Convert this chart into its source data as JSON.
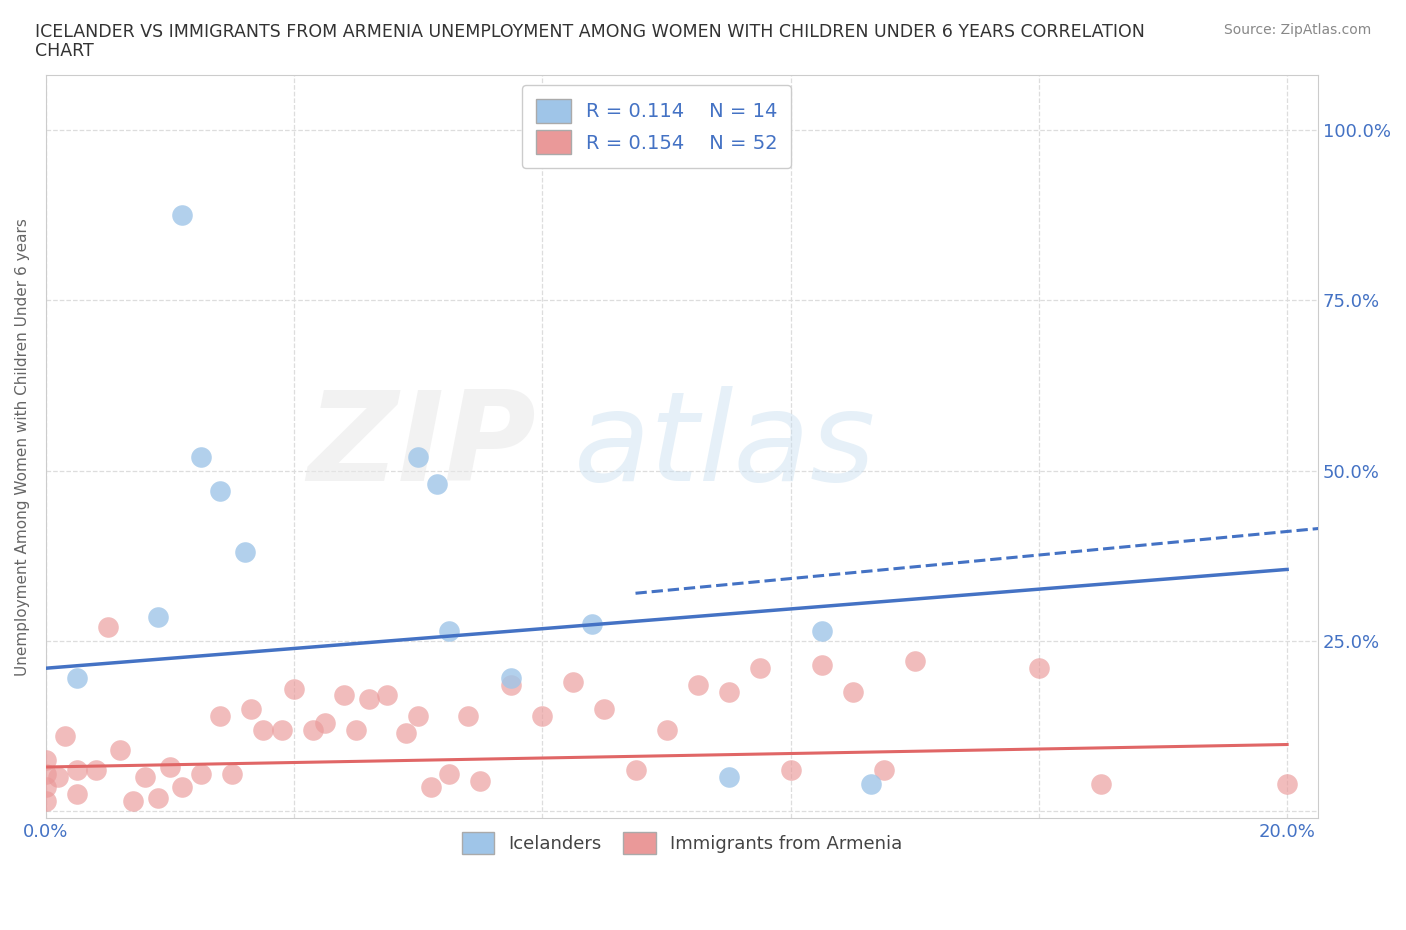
{
  "title_line1": "ICELANDER VS IMMIGRANTS FROM ARMENIA UNEMPLOYMENT AMONG WOMEN WITH CHILDREN UNDER 6 YEARS CORRELATION",
  "title_line2": "CHART",
  "source": "Source: ZipAtlas.com",
  "ylabel": "Unemployment Among Women with Children Under 6 years",
  "xlim": [
    0.0,
    0.205
  ],
  "ylim": [
    -0.01,
    1.08
  ],
  "xtick_positions": [
    0.0,
    0.04,
    0.08,
    0.12,
    0.16,
    0.2
  ],
  "ytick_positions": [
    0.0,
    0.25,
    0.5,
    0.75,
    1.0
  ],
  "xtick_labels": [
    "0.0%",
    "",
    "",
    "",
    "",
    "20.0%"
  ],
  "ytick_labels_left": [
    "",
    "",
    "",
    "",
    ""
  ],
  "ytick_labels_right": [
    "",
    "25.0%",
    "50.0%",
    "75.0%",
    "100.0%"
  ],
  "blue_scatter_color": "#9fc5e8",
  "pink_scatter_color": "#ea9999",
  "blue_line_color": "#4472c4",
  "pink_line_color": "#e06666",
  "tick_color": "#4472c4",
  "grid_color": "#dddddd",
  "legend1_label": "Icelanders",
  "legend2_label": "Immigrants from Armenia",
  "icelander_x": [
    0.005,
    0.018,
    0.022,
    0.025,
    0.028,
    0.032,
    0.06,
    0.063,
    0.065,
    0.075,
    0.088,
    0.11,
    0.125,
    0.133
  ],
  "icelander_y": [
    0.195,
    0.285,
    0.875,
    0.52,
    0.47,
    0.38,
    0.52,
    0.48,
    0.265,
    0.195,
    0.275,
    0.05,
    0.265,
    0.04
  ],
  "armenia_x": [
    0.0,
    0.0,
    0.0,
    0.0,
    0.002,
    0.003,
    0.005,
    0.005,
    0.008,
    0.01,
    0.012,
    0.014,
    0.016,
    0.018,
    0.02,
    0.022,
    0.025,
    0.028,
    0.03,
    0.033,
    0.035,
    0.038,
    0.04,
    0.043,
    0.045,
    0.048,
    0.05,
    0.052,
    0.055,
    0.058,
    0.06,
    0.062,
    0.065,
    0.068,
    0.07,
    0.075,
    0.08,
    0.085,
    0.09,
    0.095,
    0.1,
    0.105,
    0.11,
    0.115,
    0.12,
    0.125,
    0.13,
    0.135,
    0.14,
    0.16,
    0.17,
    0.2
  ],
  "armenia_y": [
    0.055,
    0.035,
    0.015,
    0.075,
    0.05,
    0.11,
    0.06,
    0.025,
    0.06,
    0.27,
    0.09,
    0.015,
    0.05,
    0.02,
    0.065,
    0.035,
    0.055,
    0.14,
    0.055,
    0.15,
    0.12,
    0.12,
    0.18,
    0.12,
    0.13,
    0.17,
    0.12,
    0.165,
    0.17,
    0.115,
    0.14,
    0.035,
    0.055,
    0.14,
    0.045,
    0.185,
    0.14,
    0.19,
    0.15,
    0.06,
    0.12,
    0.185,
    0.175,
    0.21,
    0.06,
    0.215,
    0.175,
    0.06,
    0.22,
    0.21,
    0.04,
    0.04
  ],
  "blue_line_x0": 0.0,
  "blue_line_y0": 0.21,
  "blue_line_x1": 0.2,
  "blue_line_y1": 0.355,
  "dashed_line_x0": 0.095,
  "dashed_line_y0": 0.32,
  "dashed_line_x1": 0.205,
  "dashed_line_y1": 0.415,
  "pink_line_x0": 0.0,
  "pink_line_y0": 0.065,
  "pink_line_x1": 0.2,
  "pink_line_y1": 0.098
}
